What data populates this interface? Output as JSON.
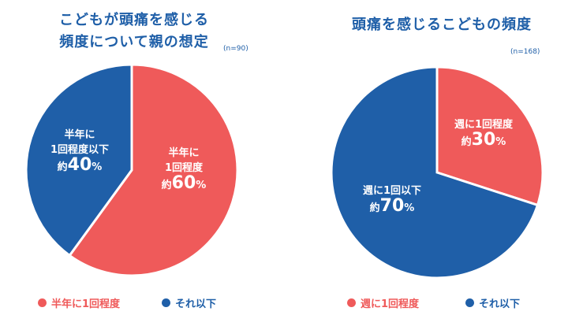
{
  "chart_data": [
    {
      "type": "pie",
      "title": "こどもが頭痛を感じる頻度について親の想定",
      "title_lines": [
        "こどもが頭痛を感じる",
        "頻度について親の想定"
      ],
      "sample": "(n=90)",
      "slices": [
        {
          "name": "半年に1回程度",
          "value": 60,
          "color": "#ef5a5a",
          "label_lines": [
            "半年に",
            "1回程度"
          ],
          "value_label": {
            "pre": "約",
            "num": "60",
            "suf": "%"
          }
        },
        {
          "name": "それ以下",
          "value": 40,
          "color": "#1f5fa8",
          "label_lines": [
            "半年に",
            "1回程度以下"
          ],
          "value_label": {
            "pre": "約",
            "num": "40",
            "suf": "%"
          }
        }
      ],
      "legend": [
        "半年に1回程度",
        "それ以下"
      ]
    },
    {
      "type": "pie",
      "title": "頭痛を感じるこどもの頻度",
      "sample": "(n=168)",
      "slices": [
        {
          "name": "週に1回程度",
          "value": 30,
          "color": "#ef5a5a",
          "label_lines": [
            "週に1回程度"
          ],
          "value_label": {
            "pre": "約",
            "num": "30",
            "suf": "%"
          }
        },
        {
          "name": "それ以下",
          "value": 70,
          "color": "#1f5fa8",
          "label_lines": [
            "週に1回以下"
          ],
          "value_label": {
            "pre": "約",
            "num": "70",
            "suf": "%"
          }
        }
      ],
      "legend": [
        "週に1回程度",
        "それ以下"
      ]
    }
  ]
}
